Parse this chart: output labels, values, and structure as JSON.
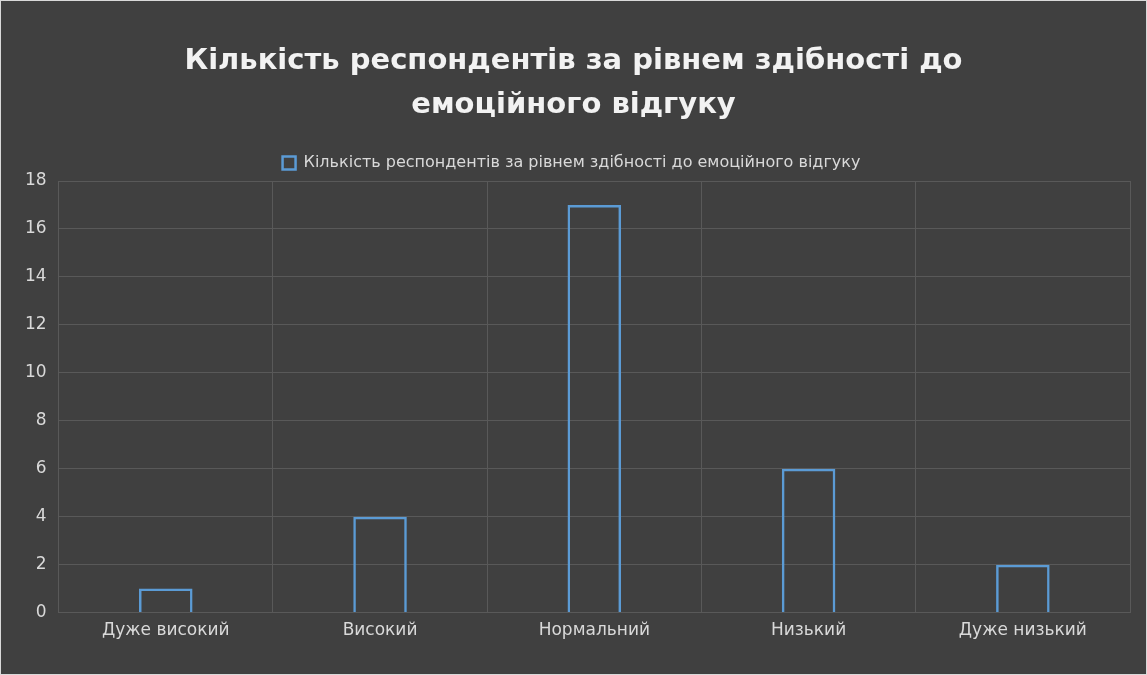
{
  "chart_data": {
    "type": "bar",
    "title": "Кількість респондентів за рівнем здібності до емоційного відгуку",
    "categories": [
      "Дуже високий",
      "Високий",
      "Нормальний",
      "Низький",
      "Дуже низький"
    ],
    "series": [
      {
        "name": "Кількість респондентів за рівнем здібності до емоційного відгуку",
        "color": "#5b9bd5",
        "values": [
          1,
          4,
          17,
          6,
          2
        ]
      }
    ],
    "ylim": [
      0,
      18
    ],
    "yticks": [
      0,
      2,
      4,
      6,
      8,
      10,
      12,
      14,
      16,
      18
    ],
    "grid": true,
    "legend": "top"
  }
}
